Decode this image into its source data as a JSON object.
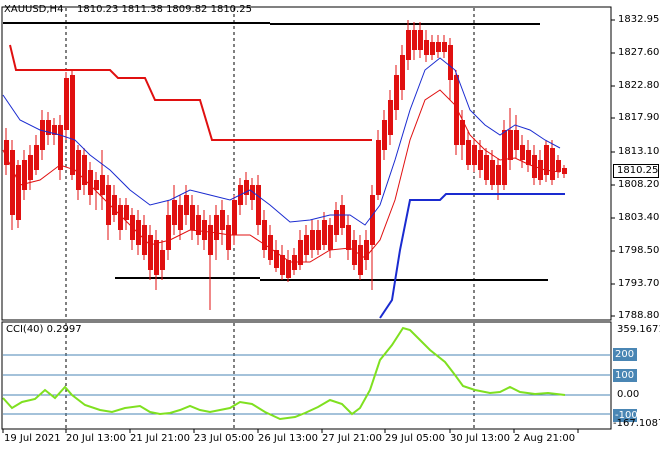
{
  "header": {
    "symbol": "XAUUSD,H4",
    "ohlc": "1810.23 1811.38 1809.82 1810.25"
  },
  "price_axis": {
    "labels": [
      "1832.95",
      "1827.60",
      "1822.80",
      "1817.90",
      "1813.10",
      "1808.20",
      "1803.40",
      "1798.50",
      "1793.70",
      "1788.80"
    ],
    "current_price": "1810.25"
  },
  "indicator": {
    "name": "CCI(40) 0.2997",
    "axis_labels": [
      "359.1671",
      "200",
      "100",
      "0.00",
      "-100",
      "-167.1087"
    ],
    "levels_marked": [
      "200",
      "100",
      "-100"
    ]
  },
  "time_axis": {
    "labels": [
      "19 Jul 2021",
      "20 Jul 13:00",
      "21 Jul 21:00",
      "23 Jul 05:00",
      "26 Jul 13:00",
      "27 Jul 21:00",
      "29 Jul 05:00",
      "30 Jul 13:00",
      "2 Aug 21:00"
    ]
  },
  "colors": {
    "bull": "#1a3bd6",
    "bear": "#e01010",
    "cci": "#7fe020",
    "level": "#4a86b4",
    "blue_band": "#1a2bd0",
    "red_band": "#e01010",
    "ma_red": "#e01010",
    "ma_blue": "#1a2bd0"
  },
  "chart_data": {
    "type": "candlestick",
    "title": "XAUUSD,H4",
    "ylim": [
      1788.8,
      1832.95
    ]
  }
}
